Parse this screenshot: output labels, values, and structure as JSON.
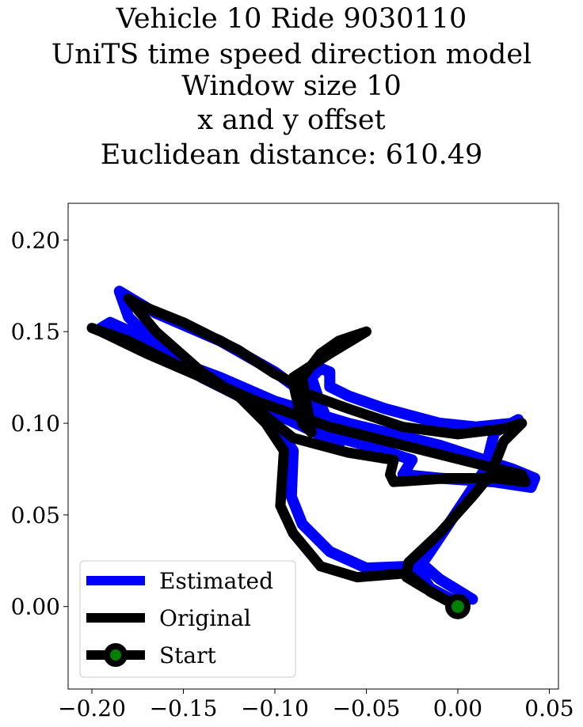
{
  "chart_data": {
    "type": "line",
    "title_lines": [
      "Vehicle 10 Ride 9030110",
      "UniTS time speed direction model",
      "Window size 10",
      "x and y offset",
      "Euclidean distance: 610.49"
    ],
    "xlabel": "",
    "ylabel": "",
    "xlim": [
      -0.213,
      0.055
    ],
    "ylim": [
      -0.045,
      0.22
    ],
    "xticks": [
      -0.2,
      -0.15,
      -0.1,
      -0.05,
      0.0,
      0.05
    ],
    "xtick_labels": [
      "−0.20",
      "−0.15",
      "−0.10",
      "−0.05",
      "0.00",
      "0.05"
    ],
    "yticks": [
      0.0,
      0.05,
      0.1,
      0.15,
      0.2
    ],
    "ytick_labels": [
      "0.00",
      "0.05",
      "0.10",
      "0.15",
      "0.20"
    ],
    "grid": false,
    "legend_position": "lower-left",
    "series": [
      {
        "name": "Estimated",
        "color": "#0000ff",
        "points": [
          [
            0.008,
            0.004
          ],
          [
            -0.01,
            0.015
          ],
          [
            -0.018,
            0.022
          ],
          [
            -0.025,
            0.022
          ],
          [
            -0.05,
            0.021
          ],
          [
            -0.07,
            0.03
          ],
          [
            -0.085,
            0.045
          ],
          [
            -0.091,
            0.06
          ],
          [
            -0.09,
            0.085
          ],
          [
            -0.1,
            0.1
          ],
          [
            -0.115,
            0.115
          ],
          [
            -0.14,
            0.128
          ],
          [
            -0.17,
            0.146
          ],
          [
            -0.19,
            0.155
          ],
          [
            -0.195,
            0.152
          ],
          [
            -0.17,
            0.14
          ],
          [
            -0.13,
            0.125
          ],
          [
            -0.1,
            0.112
          ],
          [
            -0.06,
            0.1
          ],
          [
            -0.01,
            0.088
          ],
          [
            0.03,
            0.075
          ],
          [
            0.042,
            0.07
          ],
          [
            0.04,
            0.065
          ],
          [
            0.02,
            0.068
          ],
          [
            -0.01,
            0.07
          ],
          [
            -0.03,
            0.072
          ],
          [
            -0.025,
            0.08
          ],
          [
            -0.05,
            0.088
          ],
          [
            -0.08,
            0.096
          ],
          [
            -0.11,
            0.11
          ],
          [
            -0.14,
            0.125
          ],
          [
            -0.16,
            0.138
          ],
          [
            -0.18,
            0.158
          ],
          [
            -0.185,
            0.172
          ],
          [
            -0.165,
            0.16
          ],
          [
            -0.13,
            0.145
          ],
          [
            -0.1,
            0.128
          ],
          [
            -0.085,
            0.117
          ],
          [
            -0.08,
            0.11
          ],
          [
            -0.078,
            0.095
          ],
          [
            -0.065,
            0.088
          ],
          [
            -0.075,
            0.11
          ],
          [
            -0.08,
            0.125
          ],
          [
            -0.075,
            0.13
          ],
          [
            -0.07,
            0.128
          ],
          [
            -0.07,
            0.12
          ],
          [
            -0.06,
            0.115
          ],
          [
            -0.04,
            0.108
          ],
          [
            -0.01,
            0.1
          ],
          [
            0.01,
            0.098
          ],
          [
            0.03,
            0.1
          ],
          [
            0.033,
            0.102
          ],
          [
            0.02,
            0.095
          ],
          [
            0.015,
            0.075
          ],
          [
            0.005,
            0.06
          ],
          [
            -0.005,
            0.045
          ],
          [
            -0.015,
            0.03
          ],
          [
            -0.022,
            0.02
          ],
          [
            -0.015,
            0.01
          ],
          [
            0.0,
            0.002
          ]
        ]
      },
      {
        "name": "Original",
        "color": "#000000",
        "points": [
          [
            0.0,
            0.0
          ],
          [
            -0.015,
            0.008
          ],
          [
            -0.025,
            0.016
          ],
          [
            -0.03,
            0.018
          ],
          [
            -0.055,
            0.016
          ],
          [
            -0.075,
            0.022
          ],
          [
            -0.09,
            0.04
          ],
          [
            -0.097,
            0.055
          ],
          [
            -0.095,
            0.085
          ],
          [
            -0.105,
            0.1
          ],
          [
            -0.12,
            0.115
          ],
          [
            -0.15,
            0.13
          ],
          [
            -0.18,
            0.145
          ],
          [
            -0.2,
            0.152
          ],
          [
            -0.195,
            0.15
          ],
          [
            -0.17,
            0.138
          ],
          [
            -0.14,
            0.125
          ],
          [
            -0.11,
            0.112
          ],
          [
            -0.07,
            0.098
          ],
          [
            -0.03,
            0.088
          ],
          [
            0.01,
            0.078
          ],
          [
            0.035,
            0.072
          ],
          [
            0.037,
            0.068
          ],
          [
            0.02,
            0.07
          ],
          [
            -0.005,
            0.07
          ],
          [
            -0.035,
            0.068
          ],
          [
            -0.037,
            0.072
          ],
          [
            -0.035,
            0.08
          ],
          [
            -0.06,
            0.084
          ],
          [
            -0.09,
            0.092
          ],
          [
            -0.11,
            0.108
          ],
          [
            -0.14,
            0.128
          ],
          [
            -0.165,
            0.15
          ],
          [
            -0.18,
            0.168
          ],
          [
            -0.175,
            0.165
          ],
          [
            -0.15,
            0.155
          ],
          [
            -0.12,
            0.14
          ],
          [
            -0.1,
            0.127
          ],
          [
            -0.09,
            0.122
          ],
          [
            -0.085,
            0.1
          ],
          [
            -0.08,
            0.095
          ],
          [
            -0.085,
            0.125
          ],
          [
            -0.075,
            0.138
          ],
          [
            -0.065,
            0.145
          ],
          [
            -0.05,
            0.15
          ],
          [
            -0.07,
            0.138
          ],
          [
            -0.09,
            0.125
          ],
          [
            -0.085,
            0.117
          ],
          [
            -0.06,
            0.108
          ],
          [
            -0.03,
            0.098
          ],
          [
            0.0,
            0.094
          ],
          [
            0.025,
            0.097
          ],
          [
            0.035,
            0.1
          ],
          [
            0.025,
            0.09
          ],
          [
            0.018,
            0.072
          ],
          [
            0.008,
            0.06
          ],
          [
            -0.01,
            0.04
          ],
          [
            -0.027,
            0.024
          ],
          [
            -0.028,
            0.016
          ],
          [
            -0.018,
            0.01
          ],
          [
            0.0,
            0.0
          ]
        ]
      }
    ],
    "start_point": {
      "name": "Start",
      "x": 0.0,
      "y": 0.0,
      "marker_color": "#008000",
      "edge_color": "#000000"
    },
    "legend": [
      {
        "label": "Estimated",
        "color": "#0000ff",
        "kind": "line"
      },
      {
        "label": "Original",
        "color": "#000000",
        "kind": "line"
      },
      {
        "label": "Start",
        "color": "#000000",
        "kind": "line-marker",
        "marker_color": "#008000"
      }
    ]
  }
}
